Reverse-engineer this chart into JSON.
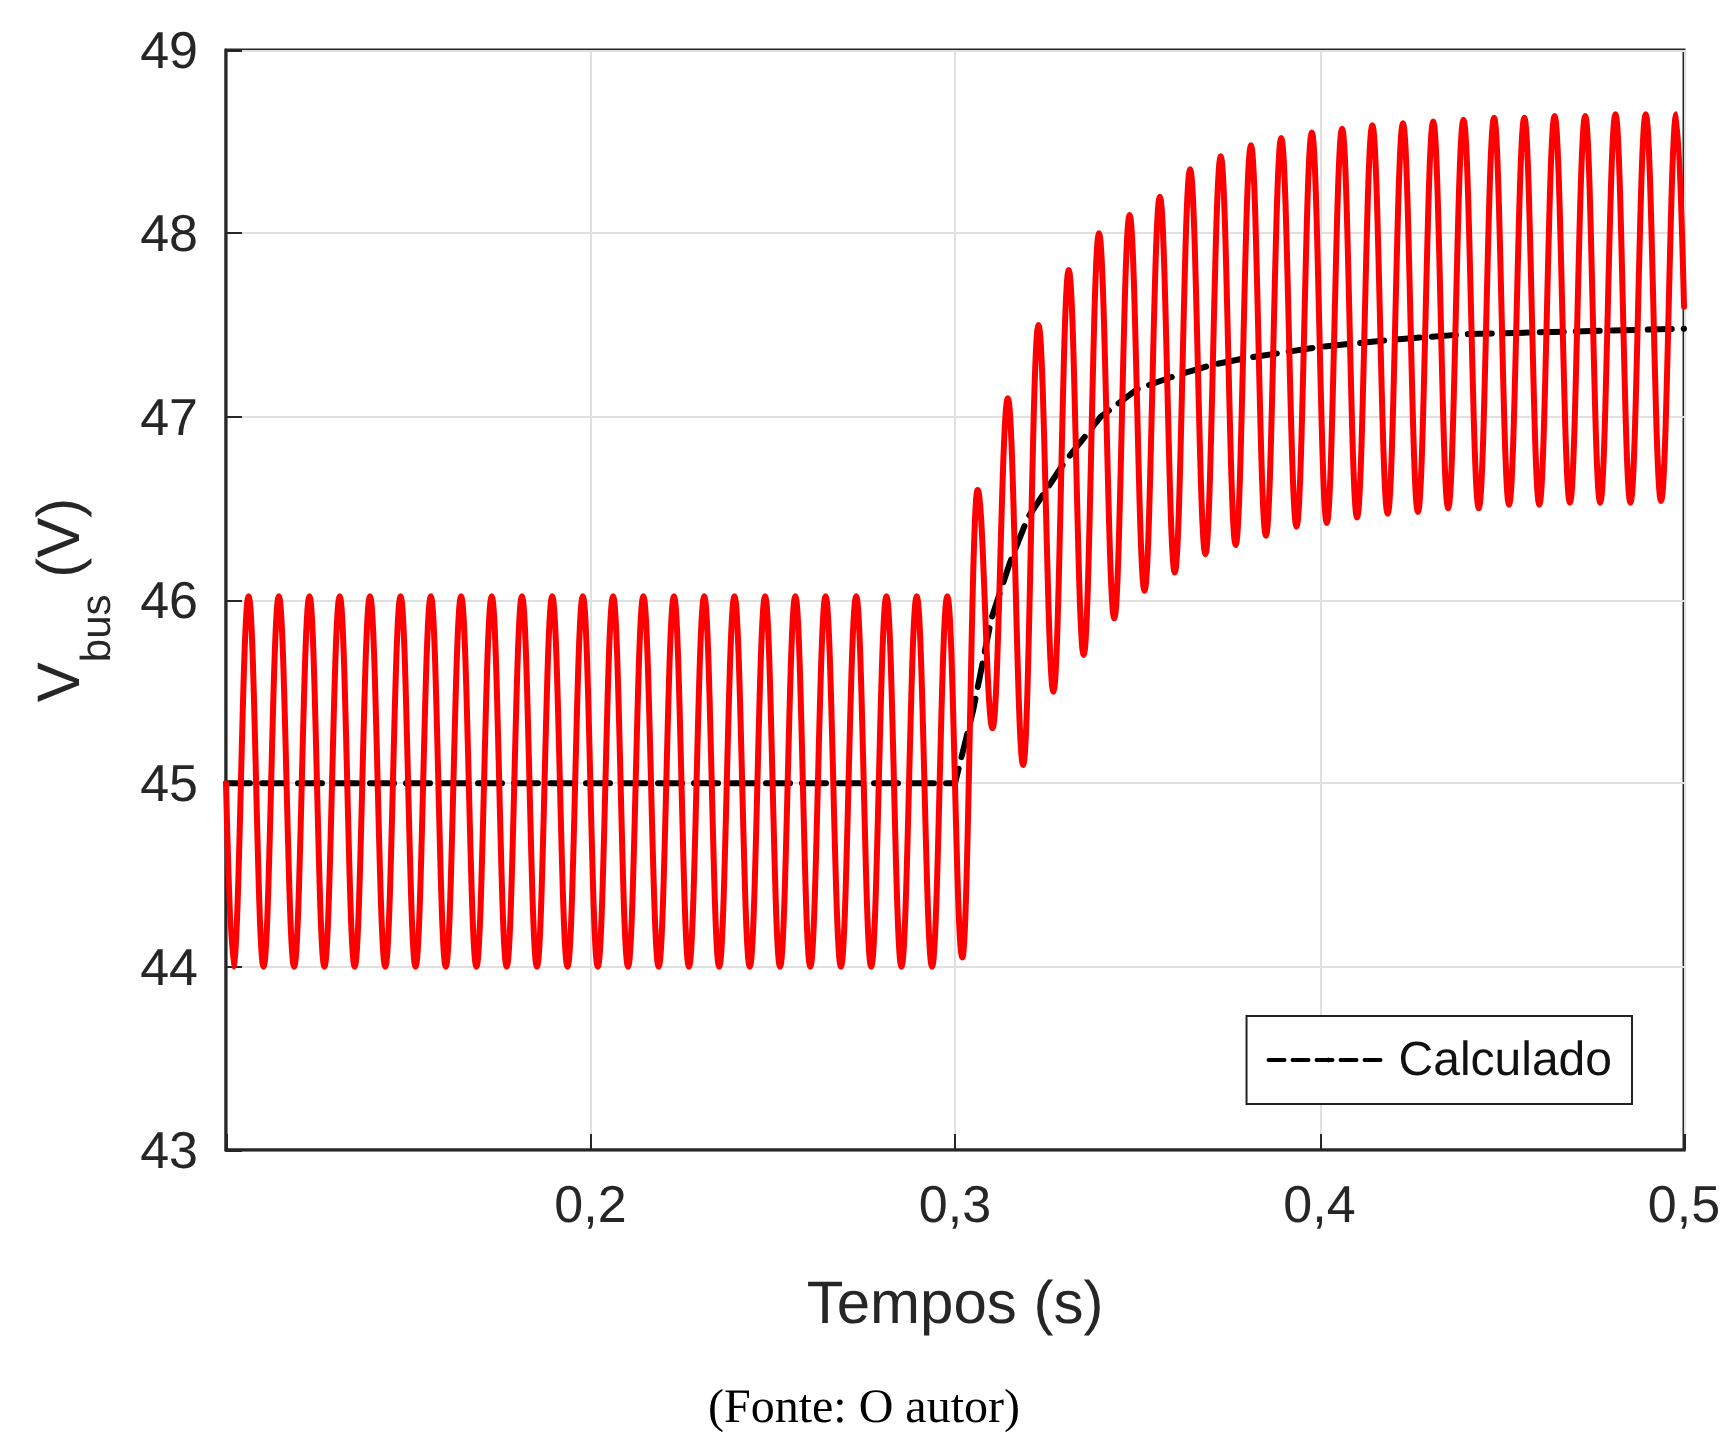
{
  "chart_data": {
    "type": "line",
    "xlabel": "Tempos (s)",
    "ylabel": "V$_{bus}$ (V)",
    "xlim": [
      0.1,
      0.5
    ],
    "xticks": [
      {
        "value": 0.1,
        "label": null
      },
      {
        "value": 0.2,
        "label": "0,2"
      },
      {
        "value": 0.3,
        "label": "0,3"
      },
      {
        "value": 0.4,
        "label": "0,4"
      },
      {
        "value": 0.5,
        "label": "0,5"
      }
    ],
    "ylim": [
      43,
      49
    ],
    "yticks": [
      43,
      44,
      45,
      46,
      47,
      48,
      49
    ],
    "grid": true,
    "legend": "bottom right",
    "marker": "none",
    "annotations": [
      "(Fonte: O autor)"
    ],
    "series": [
      {
        "color": "#ff0000",
        "line_style": "solid",
        "x": [
          0.1,
          0.102,
          0.1062,
          0.1103,
          0.1145,
          0.1187,
          0.1229,
          0.127,
          0.1312,
          0.1353,
          0.1395,
          0.1437,
          0.1479,
          0.152,
          0.1562,
          0.1603,
          0.1645,
          0.1687,
          0.1729,
          0.177,
          0.1812,
          0.1853,
          0.1895,
          0.1937,
          0.1979,
          0.202,
          0.2062,
          0.2103,
          0.2145,
          0.2187,
          0.2229,
          0.227,
          0.2312,
          0.2353,
          0.2395,
          0.2437,
          0.2479,
          0.252,
          0.2562,
          0.2603,
          0.2645,
          0.2687,
          0.2729,
          0.277,
          0.2812,
          0.2853,
          0.2895,
          0.2937,
          0.2979,
          0.302,
          0.3062,
          0.3103,
          0.3145,
          0.3187,
          0.3229,
          0.327,
          0.3312,
          0.3353,
          0.3395,
          0.3437,
          0.3479,
          0.352,
          0.3562,
          0.3603,
          0.3645,
          0.3687,
          0.3729,
          0.377,
          0.3812,
          0.3853,
          0.3895,
          0.3937,
          0.3979,
          0.402,
          0.4062,
          0.4103,
          0.4145,
          0.4187,
          0.4229,
          0.427,
          0.4312,
          0.4353,
          0.4395,
          0.4437,
          0.4479,
          0.452,
          0.4562,
          0.4603,
          0.4645,
          0.4687,
          0.4729,
          0.477,
          0.4812,
          0.4853,
          0.4895,
          0.4937,
          0.4979,
          0.5
        ],
        "values": [
          45,
          44,
          46.02,
          44,
          46.02,
          44,
          46.02,
          44,
          46.02,
          44,
          46.02,
          44,
          46.02,
          44,
          46.02,
          44,
          46.02,
          44,
          46.02,
          44,
          46.02,
          44,
          46.02,
          44,
          46.02,
          44,
          46.02,
          44,
          46.02,
          44,
          46.02,
          44,
          46.02,
          44,
          46.02,
          44,
          46.02,
          44,
          46.02,
          44,
          46.02,
          44,
          46.02,
          44,
          46.02,
          44,
          46.02,
          44,
          46.02,
          44.05,
          46.6,
          45.3,
          47.1,
          45.1,
          47.5,
          45.5,
          47.8,
          45.7,
          48.0,
          45.9,
          48.1,
          46.05,
          48.2,
          46.15,
          48.35,
          46.25,
          48.42,
          46.3,
          48.48,
          46.35,
          48.52,
          46.4,
          48.55,
          46.42,
          48.57,
          46.45,
          48.59,
          46.47,
          48.6,
          46.48,
          48.61,
          46.5,
          48.62,
          46.5,
          48.63,
          46.52,
          48.63,
          46.52,
          48.64,
          46.53,
          48.64,
          46.53,
          48.65,
          46.53,
          48.65,
          46.54,
          48.65,
          47.6
        ]
      },
      {
        "name": "Calculado",
        "color": "#000000",
        "line_style": "dashed",
        "x": [
          0.1,
          0.3,
          0.305,
          0.31,
          0.315,
          0.32,
          0.33,
          0.34,
          0.35,
          0.36,
          0.37,
          0.38,
          0.4,
          0.42,
          0.44,
          0.46,
          0.5
        ],
        "values": [
          45,
          45,
          45.4,
          45.9,
          46.2,
          46.45,
          46.75,
          47.0,
          47.15,
          47.22,
          47.28,
          47.32,
          47.38,
          47.42,
          47.45,
          47.46,
          47.48
        ]
      }
    ]
  }
}
